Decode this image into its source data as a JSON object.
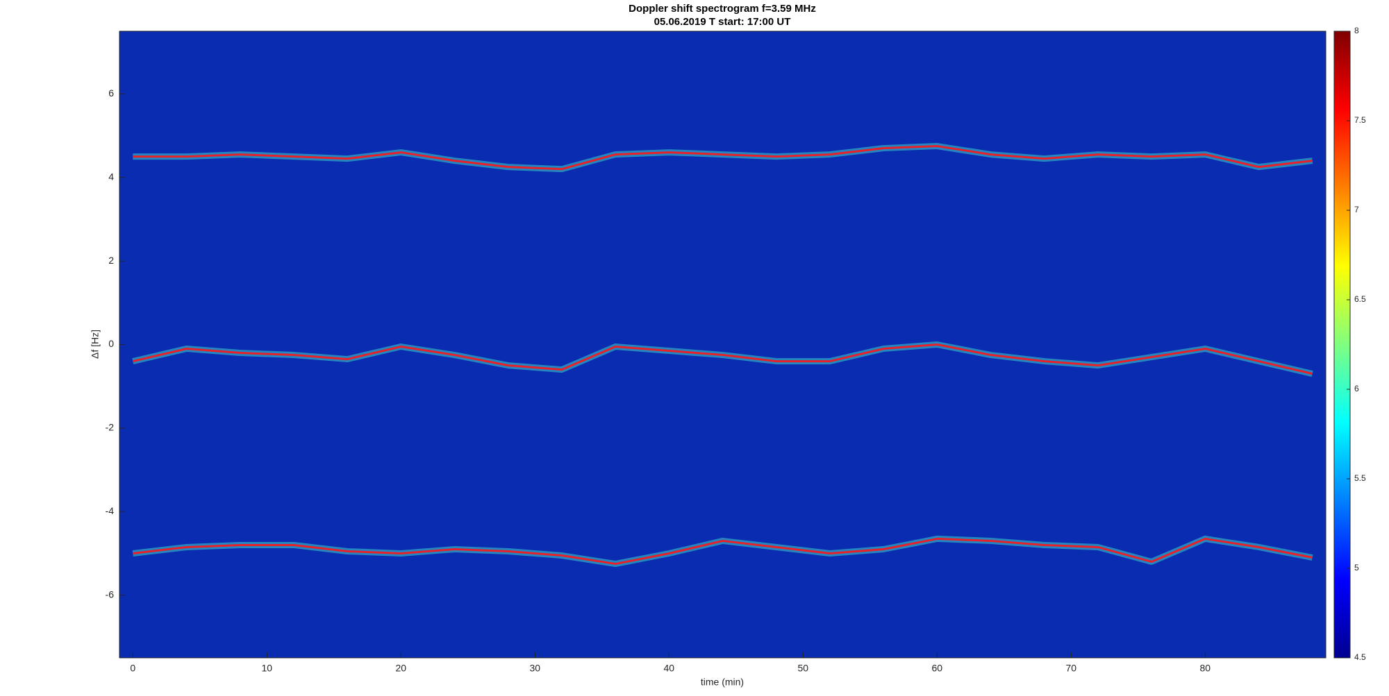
{
  "chart_data": {
    "type": "spectrogram",
    "title": "Doppler shift spectrogram f=3.59 MHz",
    "subtitle": "05.06.2019   T start: 17:00 UT",
    "x_label": "time (min)",
    "y_label": "Δf [Hz]",
    "x": [
      0,
      4,
      8,
      12,
      16,
      20,
      24,
      28,
      32,
      36,
      40,
      44,
      48,
      52,
      56,
      60,
      64,
      68,
      72,
      76,
      80,
      84,
      88
    ],
    "series": [
      {
        "color": "#e8202a",
        "values": [
          4.5,
          4.5,
          4.55,
          4.5,
          4.45,
          4.6,
          4.4,
          4.25,
          4.2,
          4.55,
          4.6,
          4.55,
          4.5,
          4.55,
          4.7,
          4.75,
          4.55,
          4.45,
          4.55,
          4.5,
          4.55,
          4.25,
          4.4
        ]
      },
      {
        "color": "#e8202a",
        "values": [
          -0.4,
          -0.1,
          -0.2,
          -0.25,
          -0.35,
          -0.05,
          -0.25,
          -0.5,
          -0.6,
          -0.05,
          -0.15,
          -0.25,
          -0.4,
          -0.4,
          -0.1,
          0,
          -0.25,
          -0.4,
          -0.5,
          -0.3,
          -0.1,
          -0.4,
          -0.7
        ]
      },
      {
        "color": "#e8202a",
        "values": [
          -5.0,
          -4.85,
          -4.8,
          -4.8,
          -4.95,
          -5.0,
          -4.9,
          -4.95,
          -5.05,
          -5.25,
          -5.0,
          -4.7,
          -4.85,
          -5.0,
          -4.9,
          -4.65,
          -4.7,
          -4.8,
          -4.85,
          -5.2,
          -4.65,
          -4.85,
          -5.1
        ]
      }
    ],
    "xlim": [
      -1,
      89
    ],
    "xticks": [
      0,
      10,
      20,
      30,
      40,
      50,
      60,
      70,
      80
    ],
    "ylim": [
      -7.5,
      7.5
    ],
    "yticks": [
      -6,
      -4,
      -2,
      0,
      2,
      4,
      6
    ],
    "plot_color": "#0a2cb0",
    "colormap": "jet",
    "clim": [
      4.5,
      8
    ],
    "cticks": [
      4.5,
      5,
      5.5,
      6,
      6.5,
      7,
      7.5,
      8
    ],
    "grid": false
  }
}
